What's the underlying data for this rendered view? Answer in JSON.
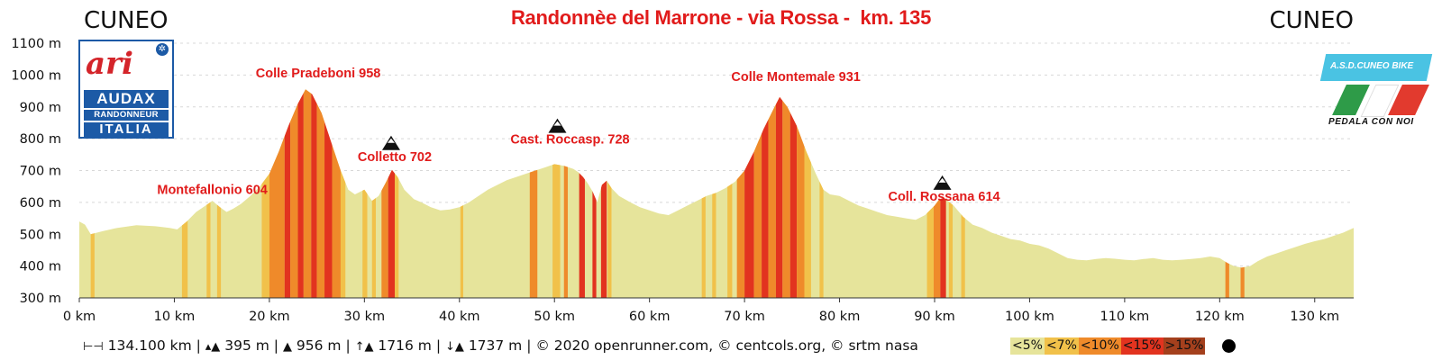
{
  "header": {
    "start_city": "CUNEO",
    "end_city": "CUNEO",
    "title": "Randonnèe del Marrone - via Rossa -  km. 135"
  },
  "logos": {
    "left": {
      "mark_a": "ar",
      "mark_b": "i",
      "line1": "AUDAX",
      "line2": "RANDONNEUR",
      "line3": "ITALIA"
    },
    "right": {
      "banner": "A.S.D.CUNEO BIKE",
      "tagline": "PEDALA CON NOI"
    }
  },
  "footer": {
    "distance": "134.100 km",
    "min_alt": "395 m",
    "max_alt": "956 m",
    "ascent": "1716 m",
    "descent": "1737 m",
    "credits": "© 2020 openrunner.com, © centcols.org, © srtm nasa"
  },
  "colors": {
    "fill_base": "#e6e49b",
    "grade_5_7": "#f1c14a",
    "grade_7_10": "#ef8a2a",
    "grade_10_15": "#e2331f",
    "grade_gt15": "#a4401d",
    "peak_label": "#e11b1b",
    "grid": "#d8d8d8"
  },
  "chart_data": {
    "type": "area",
    "title": "Randonnèe del Marrone - via Rossa -  km. 135",
    "xlabel": "",
    "ylabel": "",
    "xlim": [
      0,
      134.1
    ],
    "ylim": [
      300,
      1100
    ],
    "grid": true,
    "x_ticks": [
      {
        "value": 0,
        "label": "0 km"
      },
      {
        "value": 10,
        "label": "10 km"
      },
      {
        "value": 20,
        "label": "20 km"
      },
      {
        "value": 30,
        "label": "30 km"
      },
      {
        "value": 40,
        "label": "40 km"
      },
      {
        "value": 50,
        "label": "50 km"
      },
      {
        "value": 60,
        "label": "60 km"
      },
      {
        "value": 70,
        "label": "70 km"
      },
      {
        "value": 80,
        "label": "80 km"
      },
      {
        "value": 90,
        "label": "90 km"
      },
      {
        "value": 100,
        "label": "100 km"
      },
      {
        "value": 110,
        "label": "110 km"
      },
      {
        "value": 120,
        "label": "120 km"
      },
      {
        "value": 130,
        "label": "130 km"
      }
    ],
    "y_ticks": [
      {
        "value": 300,
        "label": "300 m"
      },
      {
        "value": 400,
        "label": "400 m"
      },
      {
        "value": 500,
        "label": "500 m"
      },
      {
        "value": 600,
        "label": "600 m"
      },
      {
        "value": 700,
        "label": "700 m"
      },
      {
        "value": 800,
        "label": "800 m"
      },
      {
        "value": 900,
        "label": "900 m"
      },
      {
        "value": 1000,
        "label": "1000 m"
      },
      {
        "value": 1100,
        "label": "1100 m"
      }
    ],
    "profile": [
      [
        0,
        540
      ],
      [
        0.6,
        530
      ],
      [
        1.2,
        500
      ],
      [
        2.5,
        510
      ],
      [
        4,
        520
      ],
      [
        6,
        528
      ],
      [
        8,
        525
      ],
      [
        9.5,
        520
      ],
      [
        10.3,
        515
      ],
      [
        11.3,
        540
      ],
      [
        12.3,
        570
      ],
      [
        13.3,
        590
      ],
      [
        14,
        605
      ],
      [
        14.8,
        585
      ],
      [
        15.5,
        570
      ],
      [
        16.2,
        580
      ],
      [
        17,
        595
      ],
      [
        18,
        620
      ],
      [
        19,
        650
      ],
      [
        20,
        690
      ],
      [
        21,
        760
      ],
      [
        22,
        840
      ],
      [
        23,
        910
      ],
      [
        23.8,
        955
      ],
      [
        24.5,
        940
      ],
      [
        25.5,
        880
      ],
      [
        26.5,
        790
      ],
      [
        27.5,
        700
      ],
      [
        28.3,
        640
      ],
      [
        29,
        625
      ],
      [
        30,
        640
      ],
      [
        30.8,
        605
      ],
      [
        31.5,
        620
      ],
      [
        32.3,
        665
      ],
      [
        32.9,
        702
      ],
      [
        33.5,
        680
      ],
      [
        34.2,
        640
      ],
      [
        35.2,
        610
      ],
      [
        36,
        600
      ],
      [
        37,
        585
      ],
      [
        38,
        575
      ],
      [
        39,
        578
      ],
      [
        40,
        585
      ],
      [
        41,
        600
      ],
      [
        42,
        620
      ],
      [
        43,
        640
      ],
      [
        44,
        655
      ],
      [
        45,
        670
      ],
      [
        46,
        680
      ],
      [
        47,
        690
      ],
      [
        48,
        700
      ],
      [
        49,
        710
      ],
      [
        50,
        720
      ],
      [
        51,
        715
      ],
      [
        52,
        705
      ],
      [
        52.5,
        695
      ],
      [
        53,
        680
      ],
      [
        53.5,
        660
      ],
      [
        54,
        635
      ],
      [
        54.5,
        600
      ],
      [
        55,
        655
      ],
      [
        55.5,
        668
      ],
      [
        56,
        645
      ],
      [
        56.8,
        620
      ],
      [
        58,
        600
      ],
      [
        59,
        585
      ],
      [
        60,
        575
      ],
      [
        61,
        565
      ],
      [
        62,
        560
      ],
      [
        63,
        575
      ],
      [
        64,
        590
      ],
      [
        65,
        605
      ],
      [
        66,
        620
      ],
      [
        67,
        630
      ],
      [
        68,
        645
      ],
      [
        69,
        665
      ],
      [
        70,
        700
      ],
      [
        71,
        760
      ],
      [
        72,
        830
      ],
      [
        73,
        890
      ],
      [
        73.7,
        931
      ],
      [
        74.5,
        900
      ],
      [
        75.5,
        840
      ],
      [
        76.5,
        760
      ],
      [
        77.5,
        690
      ],
      [
        78.3,
        640
      ],
      [
        79,
        625
      ],
      [
        80,
        620
      ],
      [
        81,
        605
      ],
      [
        82,
        590
      ],
      [
        83,
        580
      ],
      [
        84,
        570
      ],
      [
        85,
        560
      ],
      [
        86,
        555
      ],
      [
        87,
        550
      ],
      [
        88,
        545
      ],
      [
        89,
        560
      ],
      [
        90,
        590
      ],
      [
        90.5,
        610
      ],
      [
        91,
        614
      ],
      [
        92,
        590
      ],
      [
        93,
        555
      ],
      [
        94,
        530
      ],
      [
        95,
        520
      ],
      [
        96,
        505
      ],
      [
        97,
        495
      ],
      [
        98,
        485
      ],
      [
        99,
        480
      ],
      [
        100,
        470
      ],
      [
        101,
        465
      ],
      [
        102,
        455
      ],
      [
        103,
        440
      ],
      [
        104,
        425
      ],
      [
        105,
        420
      ],
      [
        106,
        418
      ],
      [
        107,
        422
      ],
      [
        108,
        425
      ],
      [
        109,
        423
      ],
      [
        110,
        420
      ],
      [
        111,
        418
      ],
      [
        112,
        422
      ],
      [
        113,
        425
      ],
      [
        114,
        420
      ],
      [
        115,
        418
      ],
      [
        116,
        420
      ],
      [
        117,
        422
      ],
      [
        118,
        425
      ],
      [
        119,
        430
      ],
      [
        120,
        425
      ],
      [
        120.8,
        410
      ],
      [
        121.5,
        400
      ],
      [
        122.3,
        395
      ],
      [
        123.2,
        400
      ],
      [
        124,
        415
      ],
      [
        125,
        430
      ],
      [
        126,
        440
      ],
      [
        127,
        450
      ],
      [
        128,
        460
      ],
      [
        129,
        470
      ],
      [
        130,
        478
      ],
      [
        131,
        485
      ],
      [
        132,
        495
      ],
      [
        133,
        505
      ],
      [
        134.1,
        520
      ]
    ],
    "grade_classes": [
      {
        "label": "<5%",
        "color": "#e6e49b"
      },
      {
        "label": "<7%",
        "color": "#f1c14a"
      },
      {
        "label": "<10%",
        "color": "#ef8a2a"
      },
      {
        "label": "<15%",
        "color": "#e2331f"
      },
      {
        "label": ">15%",
        "color": "#a4401d"
      }
    ],
    "grade_segments": [
      [
        1.2,
        1.6,
        1
      ],
      [
        10.8,
        11.4,
        1
      ],
      [
        13.4,
        13.8,
        1
      ],
      [
        14.5,
        14.9,
        1
      ],
      [
        19.2,
        20.0,
        1
      ],
      [
        20.0,
        21.6,
        2
      ],
      [
        21.6,
        22.2,
        3
      ],
      [
        22.2,
        23.0,
        2
      ],
      [
        23.0,
        23.6,
        3
      ],
      [
        23.6,
        24.4,
        2
      ],
      [
        24.4,
        25.0,
        3
      ],
      [
        25.0,
        25.8,
        2
      ],
      [
        25.8,
        26.6,
        3
      ],
      [
        26.6,
        27.5,
        2
      ],
      [
        27.5,
        28.0,
        1
      ],
      [
        29.8,
        30.3,
        1
      ],
      [
        30.8,
        31.2,
        1
      ],
      [
        31.8,
        32.5,
        2
      ],
      [
        32.5,
        33.2,
        3
      ],
      [
        33.2,
        33.6,
        1
      ],
      [
        40.1,
        40.4,
        1
      ],
      [
        47.4,
        48.2,
        2
      ],
      [
        49.8,
        50.6,
        1
      ],
      [
        51.0,
        51.4,
        2
      ],
      [
        52.6,
        53.2,
        3
      ],
      [
        54.0,
        54.4,
        3
      ],
      [
        54.9,
        55.5,
        3
      ],
      [
        55.6,
        56.0,
        1
      ],
      [
        65.5,
        65.9,
        1
      ],
      [
        66.6,
        67.0,
        1
      ],
      [
        68.2,
        68.7,
        1
      ],
      [
        69.2,
        70.0,
        2
      ],
      [
        70.0,
        71.0,
        3
      ],
      [
        71.0,
        71.8,
        2
      ],
      [
        71.8,
        72.5,
        3
      ],
      [
        72.5,
        73.3,
        2
      ],
      [
        73.3,
        74.0,
        3
      ],
      [
        74.0,
        74.8,
        2
      ],
      [
        74.8,
        75.5,
        3
      ],
      [
        75.5,
        76.3,
        2
      ],
      [
        76.3,
        77.0,
        1
      ],
      [
        77.9,
        78.3,
        1
      ],
      [
        89.2,
        89.9,
        1
      ],
      [
        89.9,
        90.6,
        2
      ],
      [
        90.6,
        91.2,
        3
      ],
      [
        91.5,
        91.9,
        1
      ],
      [
        92.8,
        93.2,
        1
      ],
      [
        120.6,
        121.0,
        2
      ],
      [
        122.2,
        122.6,
        2
      ]
    ],
    "annotations": [
      {
        "label": "Colle Pradeboni 958",
        "x": 24,
        "y": 958,
        "pass_icon": false
      },
      {
        "label": "Colletto 702",
        "x": 33,
        "y": 702,
        "pass_icon": true
      },
      {
        "label": "Montefallonio 604",
        "x": 14,
        "y": 604,
        "pass_icon": false
      },
      {
        "label": "Cast. Roccasp. 728",
        "x": 50.5,
        "y": 728,
        "pass_icon": true
      },
      {
        "label": "Colle Montemale 931",
        "x": 73.7,
        "y": 931,
        "pass_icon": false
      },
      {
        "label": "Coll. Rossana 614",
        "x": 91,
        "y": 614,
        "pass_icon": true
      }
    ]
  }
}
